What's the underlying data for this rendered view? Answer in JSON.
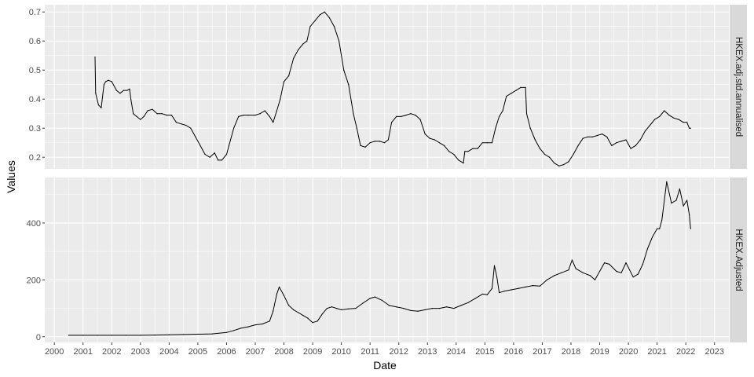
{
  "chart_data": {
    "type": "line",
    "facet_layout": "vertical",
    "xlabel": "Date",
    "ylabel": "Values",
    "x_ticks": [
      "2000",
      "2001",
      "2002",
      "2003",
      "2004",
      "2005",
      "2006",
      "2007",
      "2008",
      "2009",
      "2010",
      "2011",
      "2012",
      "2013",
      "2014",
      "2015",
      "2016",
      "2017",
      "2018",
      "2019",
      "2020",
      "2021",
      "2022",
      "2023"
    ],
    "xlim": [
      "1999-09-01",
      "2023-07-01"
    ],
    "grid": true,
    "legend": "none",
    "colors": {
      "panel_bg": "#EBEBEB",
      "grid_major": "#FFFFFF",
      "strip_bg": "#D9D9D9",
      "line": "#000000",
      "tick": "#333333"
    },
    "panels": [
      {
        "strip_label": "HKEX.adj.std.annualised",
        "ylim": [
          0.16,
          0.725
        ],
        "y_ticks": [
          {
            "value": 0.2,
            "label": "0.2"
          },
          {
            "value": 0.3,
            "label": "0.3"
          },
          {
            "value": 0.4,
            "label": "0.4"
          },
          {
            "value": 0.5,
            "label": "0.5"
          },
          {
            "value": 0.6,
            "label": "0.6"
          },
          {
            "value": 0.7,
            "label": "0.7"
          }
        ],
        "x": [
          "2001-06-01",
          "2001-06-10",
          "2001-07-15",
          "2001-08-20",
          "2001-09-25",
          "2001-10-15",
          "2001-11-20",
          "2002-01-01",
          "2002-03-01",
          "2002-04-15",
          "2002-06-01",
          "2002-07-15",
          "2002-08-15",
          "2002-09-01",
          "2002-10-01",
          "2002-11-15",
          "2003-01-01",
          "2003-02-15",
          "2003-04-01",
          "2003-06-01",
          "2003-08-01",
          "2003-10-01",
          "2003-12-01",
          "2004-02-01",
          "2004-04-01",
          "2004-06-01",
          "2004-08-01",
          "2004-10-01",
          "2004-12-01",
          "2005-02-01",
          "2005-04-01",
          "2005-06-01",
          "2005-08-01",
          "2005-09-15",
          "2005-11-01",
          "2006-01-01",
          "2006-02-01",
          "2006-04-01",
          "2006-06-01",
          "2006-08-01",
          "2006-10-01",
          "2007-01-01",
          "2007-03-01",
          "2007-05-01",
          "2007-07-01",
          "2007-08-15",
          "2007-10-01",
          "2007-11-15",
          "2008-01-01",
          "2008-03-01",
          "2008-05-01",
          "2008-07-01",
          "2008-09-01",
          "2008-10-20",
          "2008-12-01",
          "2009-02-01",
          "2009-04-01",
          "2009-06-01",
          "2009-08-01",
          "2009-10-01",
          "2009-12-01",
          "2010-02-01",
          "2010-04-01",
          "2010-06-01",
          "2010-07-15",
          "2010-09-01",
          "2010-11-01",
          "2011-01-01",
          "2011-03-01",
          "2011-05-01",
          "2011-07-01",
          "2011-08-20",
          "2011-10-01",
          "2011-12-01",
          "2012-02-01",
          "2012-04-01",
          "2012-06-01",
          "2012-08-01",
          "2012-10-01",
          "2012-12-01",
          "2013-02-01",
          "2013-04-01",
          "2013-06-01",
          "2013-08-01",
          "2013-10-01",
          "2013-12-01",
          "2014-02-01",
          "2014-04-01",
          "2014-04-20",
          "2014-06-01",
          "2014-08-01",
          "2014-10-01",
          "2014-12-01",
          "2015-02-01",
          "2015-04-01",
          "2015-05-15",
          "2015-07-01",
          "2015-08-15",
          "2015-10-01",
          "2015-12-01",
          "2016-02-01",
          "2016-04-01",
          "2016-06-01",
          "2016-06-15",
          "2016-08-01",
          "2016-10-01",
          "2016-12-01",
          "2017-02-01",
          "2017-04-01",
          "2017-06-01",
          "2017-08-01",
          "2017-10-01",
          "2017-12-01",
          "2018-02-01",
          "2018-04-01",
          "2018-06-01",
          "2018-08-01",
          "2018-10-01",
          "2018-12-01",
          "2019-02-01",
          "2019-04-01",
          "2019-06-01",
          "2019-08-01",
          "2019-10-01",
          "2019-12-01",
          "2020-02-01",
          "2020-04-01",
          "2020-06-01",
          "2020-08-01",
          "2020-10-01",
          "2020-12-01",
          "2021-02-01",
          "2021-04-01",
          "2021-06-01",
          "2021-08-01",
          "2021-10-01",
          "2021-12-01",
          "2022-01-15",
          "2022-02-15",
          "2022-03-01"
        ],
        "y": [
          0.545,
          0.42,
          0.38,
          0.37,
          0.45,
          0.46,
          0.465,
          0.46,
          0.43,
          0.42,
          0.43,
          0.43,
          0.435,
          0.4,
          0.35,
          0.34,
          0.33,
          0.34,
          0.36,
          0.365,
          0.35,
          0.35,
          0.345,
          0.345,
          0.32,
          0.315,
          0.31,
          0.3,
          0.27,
          0.24,
          0.21,
          0.2,
          0.215,
          0.19,
          0.19,
          0.21,
          0.24,
          0.3,
          0.34,
          0.345,
          0.345,
          0.345,
          0.35,
          0.36,
          0.34,
          0.32,
          0.36,
          0.4,
          0.46,
          0.48,
          0.54,
          0.57,
          0.59,
          0.6,
          0.65,
          0.67,
          0.69,
          0.7,
          0.68,
          0.65,
          0.6,
          0.5,
          0.45,
          0.35,
          0.3,
          0.24,
          0.235,
          0.25,
          0.255,
          0.255,
          0.25,
          0.26,
          0.32,
          0.34,
          0.34,
          0.345,
          0.35,
          0.345,
          0.33,
          0.28,
          0.265,
          0.26,
          0.25,
          0.24,
          0.22,
          0.21,
          0.19,
          0.18,
          0.22,
          0.22,
          0.23,
          0.23,
          0.25,
          0.25,
          0.25,
          0.3,
          0.34,
          0.36,
          0.41,
          0.42,
          0.43,
          0.44,
          0.44,
          0.35,
          0.3,
          0.26,
          0.23,
          0.21,
          0.2,
          0.18,
          0.17,
          0.175,
          0.185,
          0.21,
          0.24,
          0.265,
          0.27,
          0.27,
          0.275,
          0.28,
          0.27,
          0.24,
          0.25,
          0.255,
          0.26,
          0.23,
          0.24,
          0.26,
          0.29,
          0.31,
          0.33,
          0.34,
          0.36,
          0.345,
          0.335,
          0.33,
          0.32,
          0.32,
          0.3,
          0.3
        ]
      },
      {
        "strip_label": "HKEX.Adjusted",
        "ylim": [
          -20,
          560
        ],
        "y_ticks": [
          {
            "value": 0,
            "label": "0"
          },
          {
            "value": 200,
            "label": "200"
          },
          {
            "value": 400,
            "label": "400"
          }
        ],
        "x": [
          "2000-07-01",
          "2001-01-01",
          "2001-07-01",
          "2002-01-01",
          "2002-07-01",
          "2003-01-01",
          "2003-07-01",
          "2004-01-01",
          "2004-07-01",
          "2005-01-01",
          "2005-07-01",
          "2006-01-01",
          "2006-04-01",
          "2006-07-01",
          "2006-10-01",
          "2007-01-01",
          "2007-04-01",
          "2007-07-01",
          "2007-08-15",
          "2007-10-01",
          "2007-11-01",
          "2008-01-01",
          "2008-03-01",
          "2008-05-01",
          "2008-07-01",
          "2008-09-01",
          "2008-11-01",
          "2009-01-01",
          "2009-03-01",
          "2009-05-01",
          "2009-07-01",
          "2009-09-01",
          "2009-11-01",
          "2010-01-01",
          "2010-04-01",
          "2010-07-01",
          "2010-10-01",
          "2011-01-01",
          "2011-03-01",
          "2011-06-01",
          "2011-09-01",
          "2011-12-01",
          "2012-03-01",
          "2012-06-01",
          "2012-09-01",
          "2012-12-01",
          "2013-03-01",
          "2013-06-01",
          "2013-09-01",
          "2013-12-01",
          "2014-03-01",
          "2014-06-01",
          "2014-09-01",
          "2014-12-01",
          "2015-02-01",
          "2015-04-01",
          "2015-05-01",
          "2015-06-01",
          "2015-07-01",
          "2015-09-01",
          "2015-12-01",
          "2016-03-01",
          "2016-06-01",
          "2016-09-01",
          "2016-12-01",
          "2017-03-01",
          "2017-06-01",
          "2017-09-01",
          "2017-12-01",
          "2018-01-15",
          "2018-03-01",
          "2018-06-01",
          "2018-09-01",
          "2018-11-01",
          "2019-01-01",
          "2019-03-01",
          "2019-05-01",
          "2019-08-01",
          "2019-10-01",
          "2019-12-01",
          "2020-03-01",
          "2020-05-01",
          "2020-07-01",
          "2020-09-01",
          "2020-11-01",
          "2021-01-01",
          "2021-02-01",
          "2021-03-01",
          "2021-05-01",
          "2021-07-01",
          "2021-09-01",
          "2021-10-15",
          "2021-12-01",
          "2022-01-15",
          "2022-02-15",
          "2022-03-01"
        ],
        "y": [
          5,
          5,
          5,
          5,
          5,
          5,
          6,
          7,
          8,
          9,
          10,
          15,
          22,
          30,
          35,
          42,
          45,
          55,
          90,
          150,
          175,
          145,
          110,
          95,
          85,
          75,
          65,
          50,
          55,
          80,
          100,
          105,
          100,
          95,
          98,
          100,
          118,
          135,
          140,
          128,
          110,
          105,
          100,
          92,
          90,
          95,
          100,
          100,
          105,
          100,
          110,
          120,
          135,
          150,
          148,
          170,
          250,
          210,
          155,
          160,
          165,
          170,
          175,
          180,
          178,
          200,
          215,
          225,
          235,
          270,
          240,
          225,
          215,
          200,
          230,
          260,
          255,
          230,
          225,
          260,
          210,
          220,
          255,
          310,
          350,
          380,
          380,
          410,
          545,
          470,
          480,
          520,
          460,
          480,
          430,
          380
        ]
      }
    ]
  }
}
